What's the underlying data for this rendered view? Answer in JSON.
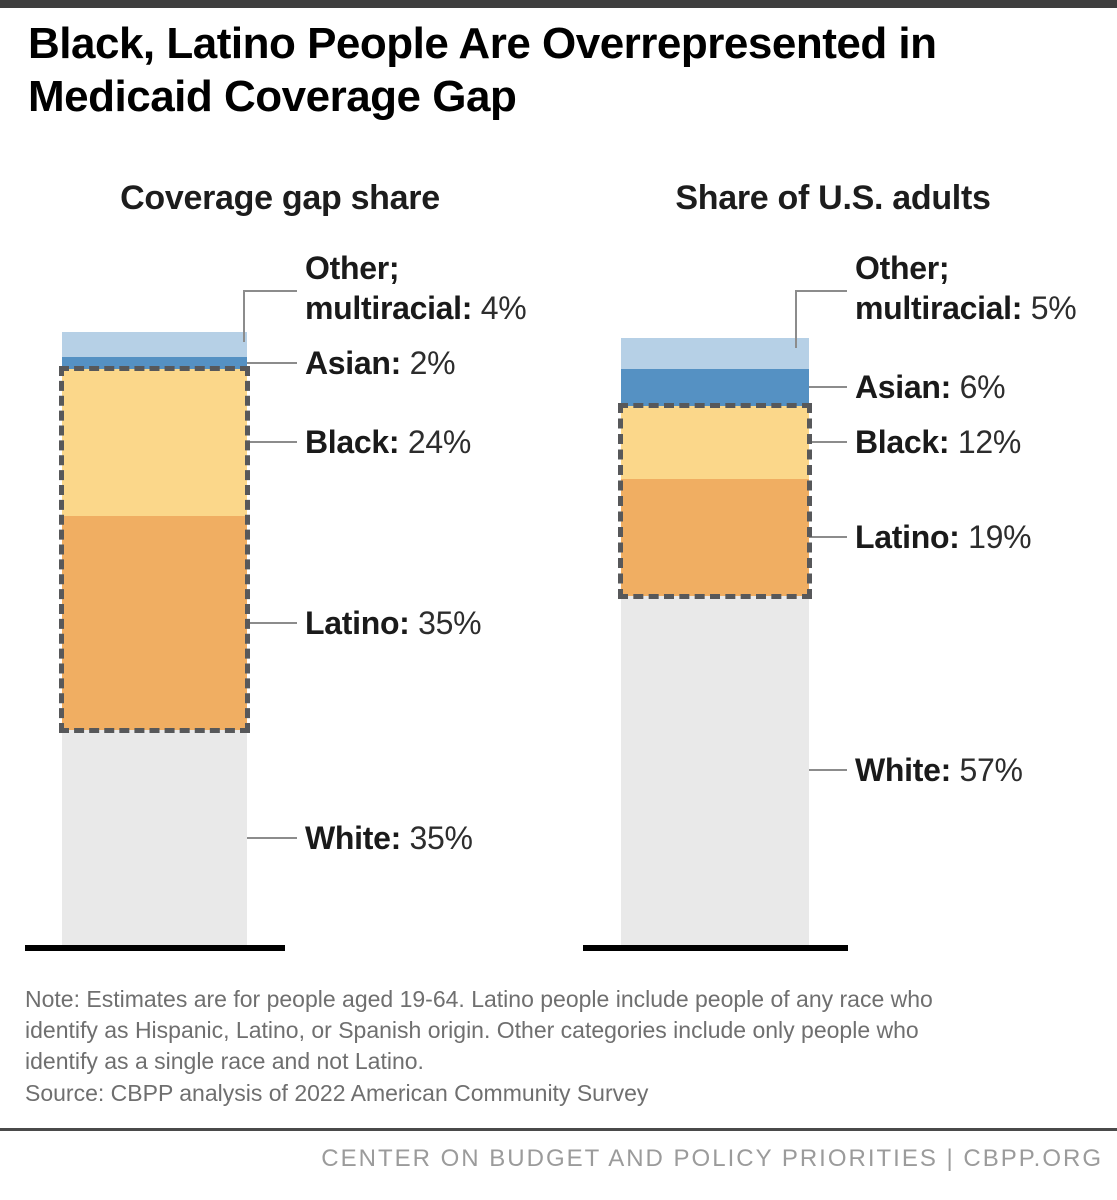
{
  "title_lines": [
    "Black, Latino People Are Overrepresented in",
    "Medicaid Coverage Gap"
  ],
  "note_lines": [
    "Note: Estimates are for people aged 19-64. Latino people include people of any race who",
    "identify as Hispanic, Latino, or Spanish origin. Other categories include only people who",
    "identify as a single race and not Latino."
  ],
  "source": "Source: CBPP analysis of 2022 American Community Survey",
  "footer": "CENTER ON BUDGET AND POLICY PRIORITIES | CBPP.ORG",
  "colors": {
    "other": "#b6d0e6",
    "asian": "#5591c3",
    "black": "#fbd78a",
    "latino": "#f0ae62",
    "white": "#e9e9e9",
    "dash_outline": "#57585a",
    "connector": "#8c8c8c",
    "baseline": "#000000",
    "top_strip": "#3f3f3f",
    "footer_line": "#4a4a4a",
    "note_text": "#6f6f6f",
    "footer_text": "#9b9b9b"
  },
  "chart_data": [
    {
      "type": "bar",
      "stacked": true,
      "unit": "percent",
      "title": "Coverage gap share",
      "total_pct": 100,
      "segments": [
        {
          "name": "Other; multiracial",
          "value_pct": 4,
          "color_key": "other",
          "highlighted": false,
          "label_lines": [
            "Other;",
            "multiracial: 4%"
          ]
        },
        {
          "name": "Asian",
          "value_pct": 2,
          "color_key": "asian",
          "highlighted": false,
          "label_lines": [
            "Asian: 2%"
          ]
        },
        {
          "name": "Black",
          "value_pct": 24,
          "color_key": "black",
          "highlighted": true,
          "label_lines": [
            "Black: 24%"
          ]
        },
        {
          "name": "Latino",
          "value_pct": 35,
          "color_key": "latino",
          "highlighted": true,
          "label_lines": [
            "Latino: 35%"
          ]
        },
        {
          "name": "White",
          "value_pct": 35,
          "color_key": "white",
          "highlighted": false,
          "label_lines": [
            "White: 35%"
          ]
        }
      ]
    },
    {
      "type": "bar",
      "stacked": true,
      "unit": "percent",
      "title": "Share of U.S. adults",
      "total_pct": 99,
      "segments": [
        {
          "name": "Other; multiracial",
          "value_pct": 5,
          "color_key": "other",
          "highlighted": false,
          "label_lines": [
            "Other;",
            "multiracial: 5%"
          ]
        },
        {
          "name": "Asian",
          "value_pct": 6,
          "color_key": "asian",
          "highlighted": false,
          "label_lines": [
            "Asian: 6%"
          ]
        },
        {
          "name": "Black",
          "value_pct": 12,
          "color_key": "black",
          "highlighted": true,
          "label_lines": [
            "Black: 12%"
          ]
        },
        {
          "name": "Latino",
          "value_pct": 19,
          "color_key": "latino",
          "highlighted": true,
          "label_lines": [
            "Latino: 19%"
          ]
        },
        {
          "name": "White",
          "value_pct": 57,
          "color_key": "white",
          "highlighted": false,
          "label_lines": [
            "White: 57%"
          ]
        }
      ]
    }
  ]
}
